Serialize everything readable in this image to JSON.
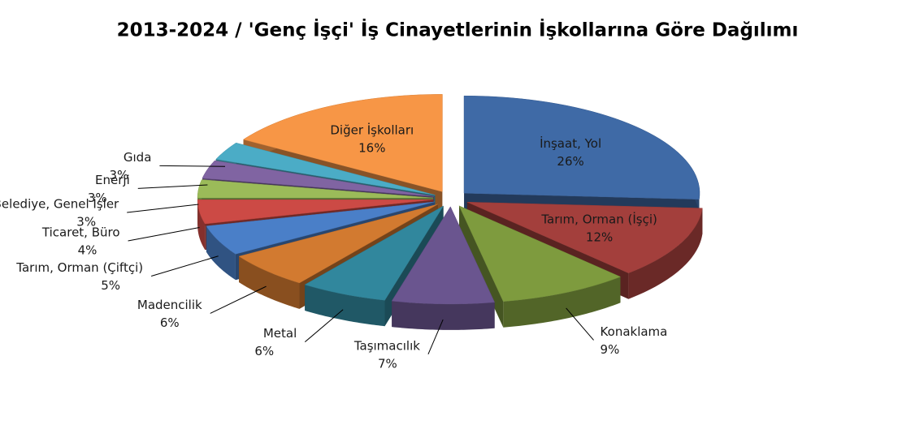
{
  "chart_data": {
    "type": "pie",
    "title": "2013-2024 / 'Genç İşçi' İş Cinayetlerinin İşkollarına Göre Dağılımı",
    "categories": [
      "İnşaat, Yol",
      "Tarım, Orman (İşçi)",
      "Konaklama",
      "Taşımacılık",
      "Metal",
      "Madencilik",
      "Tarım, Orman (Çiftçi)",
      "Ticaret, Büro",
      "Belediye, Genel İşler",
      "Enerji",
      "Gıda",
      "Diğer İşkolları"
    ],
    "values": [
      26,
      12,
      9,
      7,
      6,
      6,
      5,
      4,
      3,
      3,
      3,
      16
    ],
    "value_labels": [
      "26%",
      "12%",
      "9%",
      "7%",
      "6%",
      "6%",
      "5%",
      "4%",
      "3%",
      "3%",
      "3%",
      "16%"
    ],
    "colors": [
      "#3f6aa6",
      "#a33f3c",
      "#7e9b3e",
      "#6a558f",
      "#31879d",
      "#d27a30",
      "#4a7fc8",
      "#cc4a45",
      "#9bbb59",
      "#8064a2",
      "#4bacc6",
      "#f79646"
    ]
  }
}
